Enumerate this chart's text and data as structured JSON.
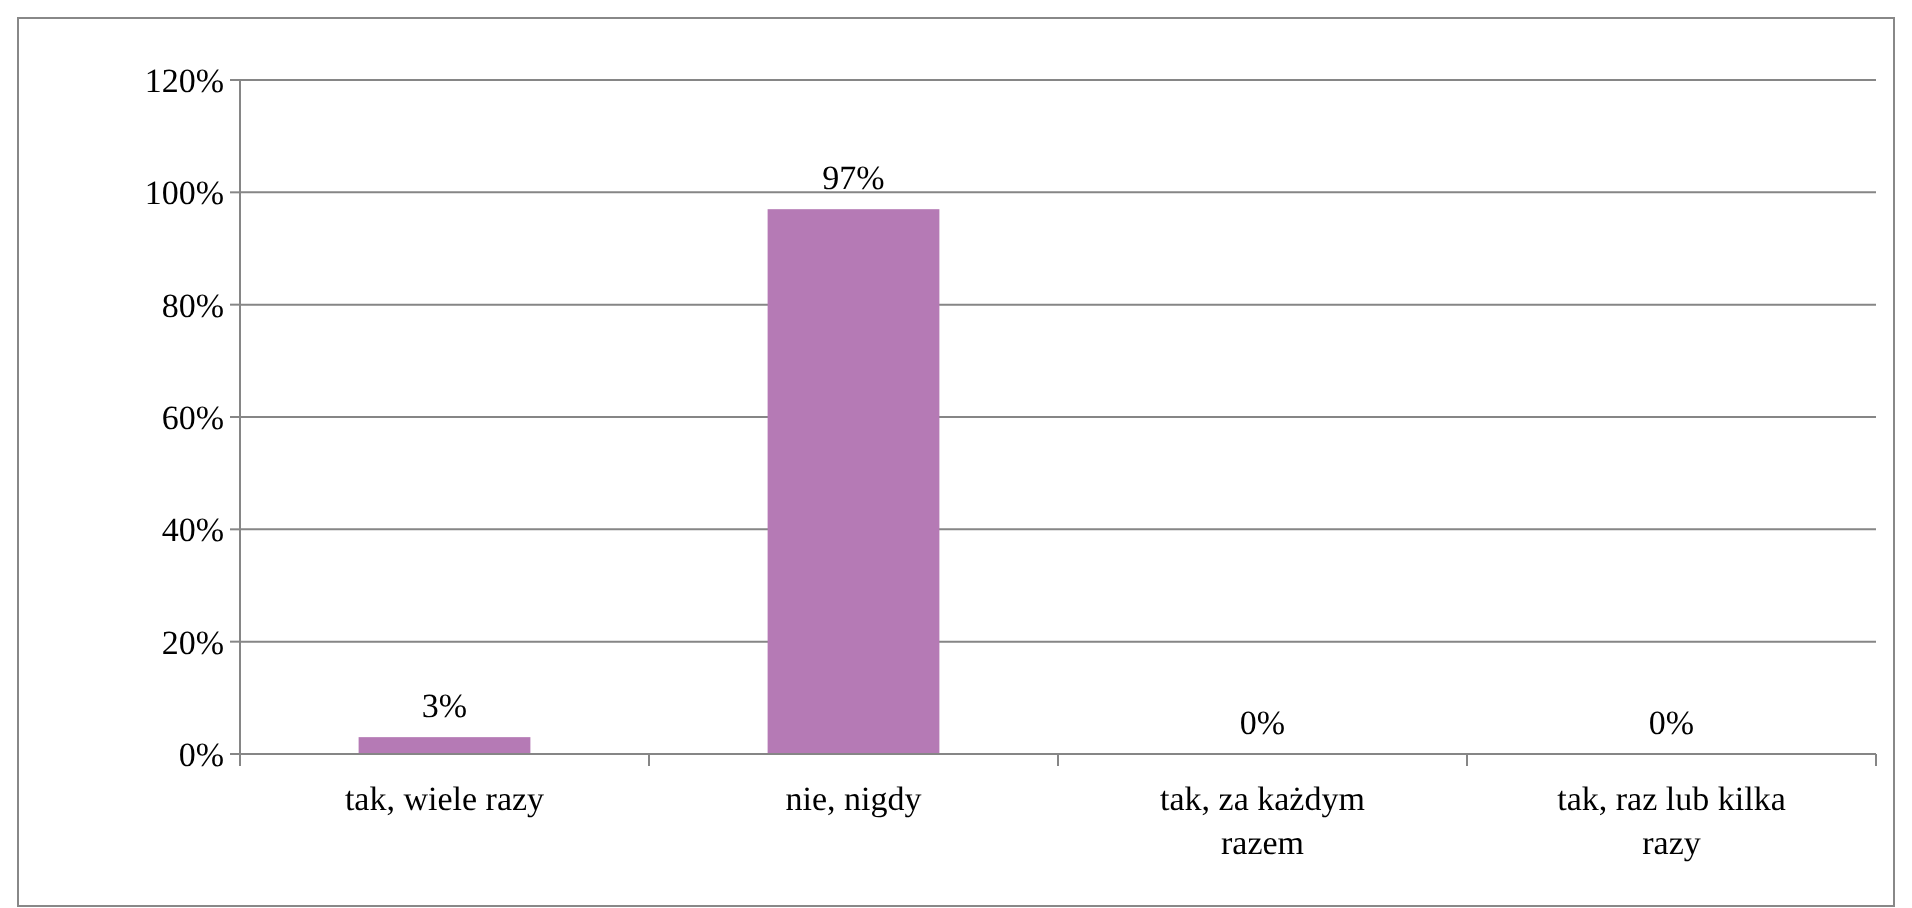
{
  "chart_data": {
    "type": "bar",
    "categories": [
      "tak, wiele razy",
      "nie, nigdy",
      "tak, za każdym razem",
      "tak, raz lub kilka razy"
    ],
    "values": [
      3,
      97,
      0,
      0
    ],
    "color": "#b57ab5",
    "value_labels": [
      "3%",
      "97%",
      "0%",
      "0%"
    ],
    "ylim": [
      0,
      120
    ],
    "yticks": [
      {
        "value": 0,
        "label": "0%"
      },
      {
        "value": 20,
        "label": "20%"
      },
      {
        "value": 40,
        "label": "40%"
      },
      {
        "value": 60,
        "label": "60%"
      },
      {
        "value": 80,
        "label": "80%"
      },
      {
        "value": 100,
        "label": "100%"
      },
      {
        "value": 120,
        "label": "120%"
      }
    ],
    "grid": "y"
  }
}
